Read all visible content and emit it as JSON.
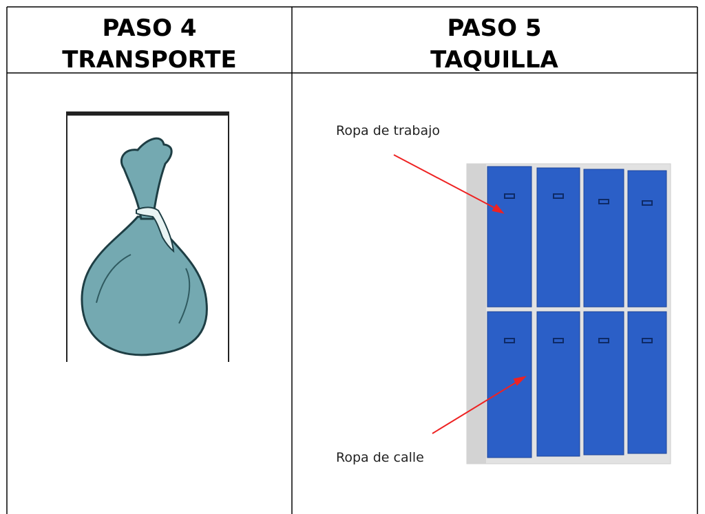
{
  "table": {
    "header": [
      [
        "PASO 4",
        "TRANSPORTE"
      ],
      [
        "PASO 5",
        "TAQUILLA"
      ]
    ],
    "locker_labels": [
      "Ropa de trabajo",
      "Ropa de calle"
    ]
  }
}
